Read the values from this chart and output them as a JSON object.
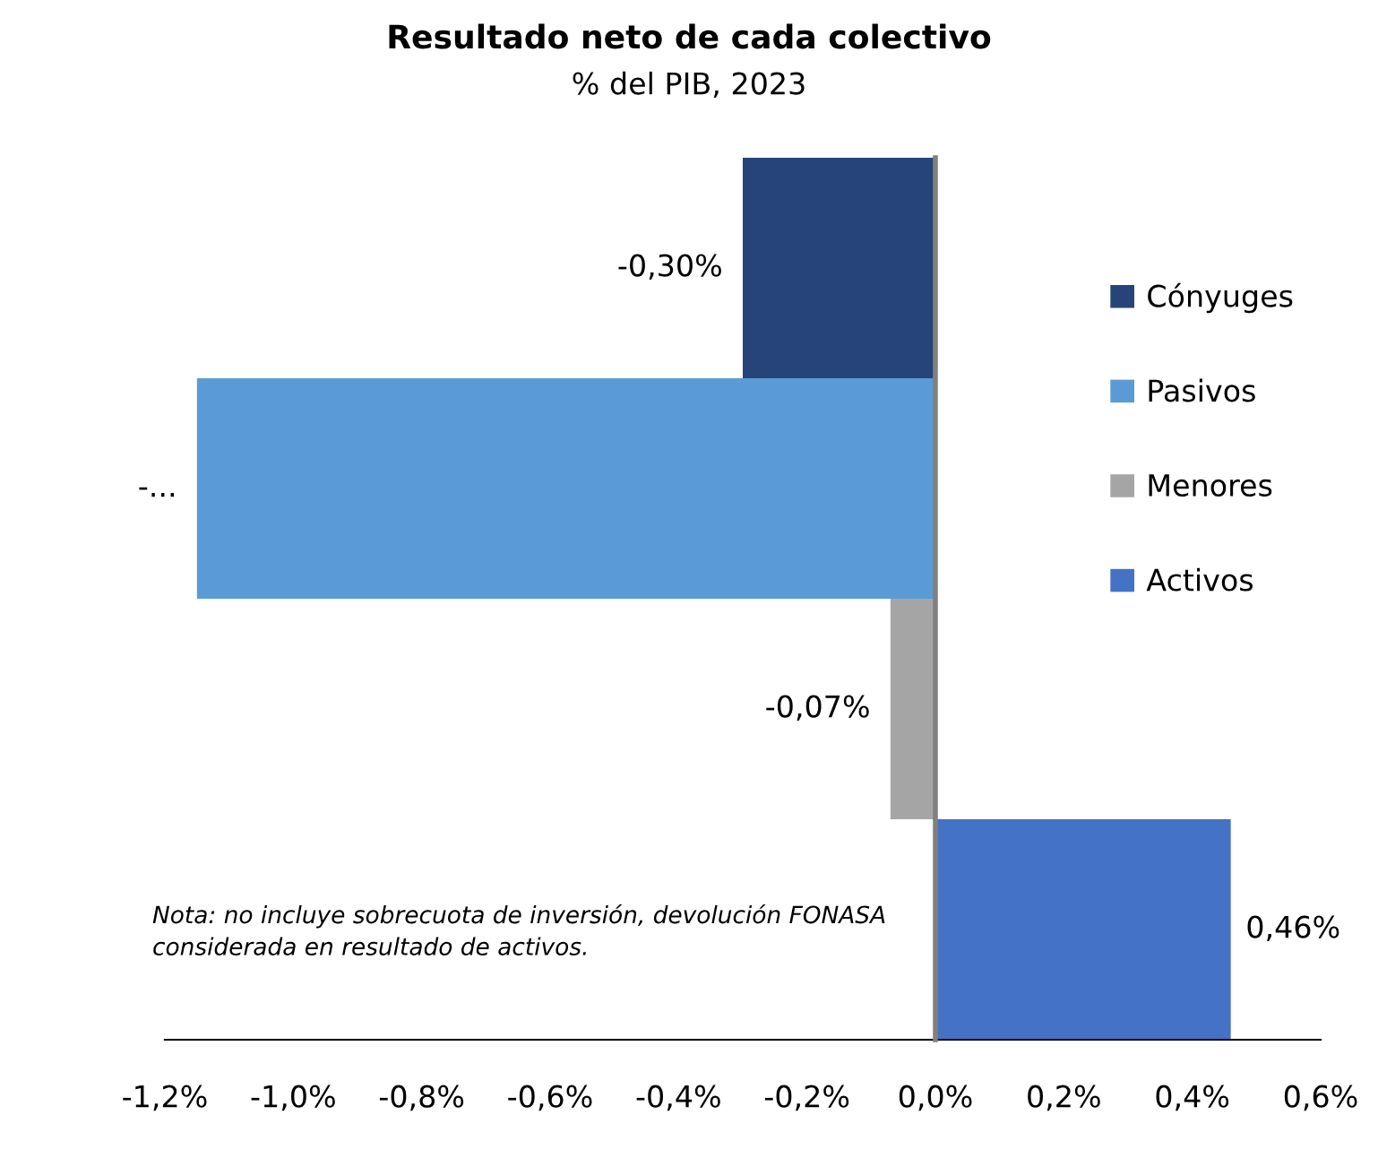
{
  "chart_data": {
    "type": "bar",
    "orientation": "horizontal",
    "title": "Resultado neto de cada colectivo",
    "subtitle": "% del PIB, 2023",
    "categories": [
      null,
      null,
      null,
      null
    ],
    "series": [
      {
        "name": "Cónyuges",
        "color": "#264478",
        "values": [
          -0.3,
          null,
          null,
          null
        ],
        "value_labels": [
          "-0,30%",
          null,
          null,
          null
        ]
      },
      {
        "name": "Pasivos",
        "color": "#5b9bd5",
        "values": [
          null,
          -1.15,
          null,
          null
        ],
        "value_labels": [
          null,
          "-...",
          null,
          null
        ]
      },
      {
        "name": "Menores",
        "color": "#a5a5a5",
        "values": [
          null,
          null,
          -0.07,
          null
        ],
        "value_labels": [
          null,
          null,
          "-0,07%",
          null
        ]
      },
      {
        "name": "Activos",
        "color": "#4472c4",
        "values": [
          null,
          null,
          null,
          0.46
        ],
        "value_labels": [
          null,
          null,
          null,
          "0,46%"
        ]
      }
    ],
    "xlim": [
      -1.2,
      0.6
    ],
    "xticks": [
      {
        "value": -1.2,
        "label": "-1,2%"
      },
      {
        "value": -1.0,
        "label": "-1,0%"
      },
      {
        "value": -0.8,
        "label": "-0,8%"
      },
      {
        "value": -0.6,
        "label": "-0,6%"
      },
      {
        "value": -0.4,
        "label": "-0,4%"
      },
      {
        "value": -0.2,
        "label": "-0,2%"
      },
      {
        "value": 0.0,
        "label": "0,0%"
      },
      {
        "value": 0.2,
        "label": "0,2%"
      },
      {
        "value": 0.4,
        "label": "0,4%"
      },
      {
        "value": 0.6,
        "label": "0,6%"
      }
    ],
    "annotations": [
      "Nota: no incluye sobrecuota de inversión, devolución FONASA considerada en resultado de activos."
    ],
    "legend": "right",
    "tick_labels": "x"
  }
}
